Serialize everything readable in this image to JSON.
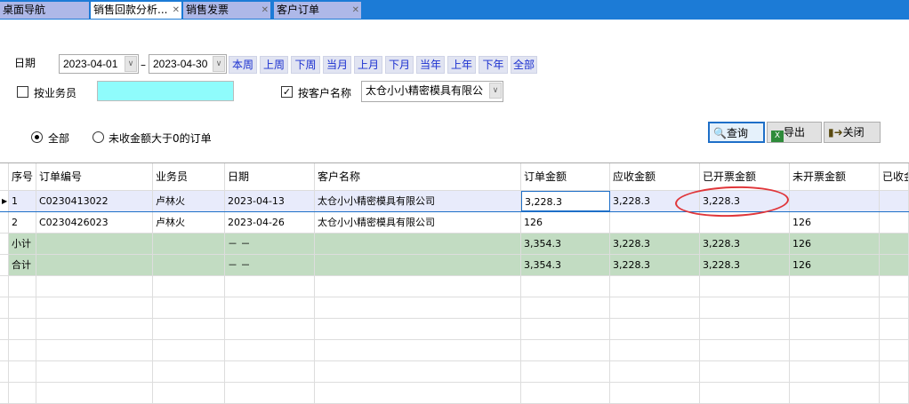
{
  "tabs": [
    {
      "label": "桌面导航",
      "closable": false
    },
    {
      "label": "销售回款分析...",
      "closable": true,
      "active": true
    },
    {
      "label": "销售发票",
      "closable": true
    },
    {
      "label": "客户订单",
      "closable": true
    }
  ],
  "filters": {
    "date_label": "日期",
    "date_from": "2023-04-01",
    "date_sep": "–",
    "date_to": "2023-04-30",
    "quick": [
      "本周",
      "上周",
      "下周",
      "当月",
      "上月",
      "下月",
      "当年",
      "上年",
      "下年",
      "全部"
    ],
    "by_salesman_label": "按业务员",
    "by_salesman_checked": false,
    "salesman_value": "",
    "by_customer_label": "按客户名称",
    "by_customer_checked": true,
    "customer_value": "太仓小小精密模具有限公",
    "radio_all": "全部",
    "radio_unpaid": "未收金额大于0的订单",
    "radio_selected": "all"
  },
  "buttons": {
    "query": "查询",
    "export": "导出",
    "close": "关闭"
  },
  "grid": {
    "columns": [
      "序号",
      "订单编号",
      "业务员",
      "日期",
      "客户名称",
      "订单金额",
      "应收金额",
      "已开票金额",
      "未开票金额",
      "已收金"
    ],
    "rows": [
      [
        "1",
        "C0230413022",
        "卢林火",
        "2023-04-13",
        "太仓小小精密模具有限公司",
        "3,228.3",
        "3,228.3",
        "3,228.3",
        "",
        ""
      ],
      [
        "2",
        "C0230426023",
        "卢林火",
        "2023-04-26",
        "太仓小小精密模具有限公司",
        "126",
        "",
        "",
        "126",
        ""
      ]
    ],
    "summary": [
      [
        "小计",
        "",
        "",
        "－ －",
        "",
        "3,354.3",
        "3,228.3",
        "3,228.3",
        "126",
        ""
      ],
      [
        "合计",
        "",
        "",
        "－ －",
        "",
        "3,354.3",
        "3,228.3",
        "3,228.3",
        "126",
        ""
      ]
    ]
  },
  "colors": {
    "tabbar": "#1c7bd6",
    "summary_row": "#c2dcc2",
    "highlight": "#e0363a",
    "salesman_field": "#8ffcfc"
  }
}
